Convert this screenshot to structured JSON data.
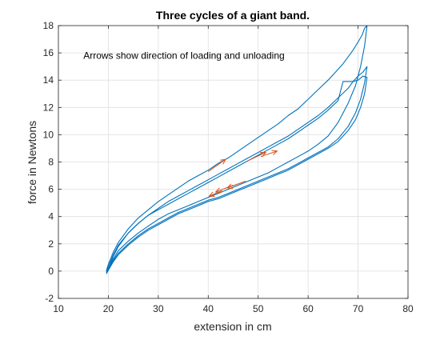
{
  "chart_data": {
    "type": "line",
    "title": "Three cycles of a giant band.",
    "xlabel": "extension in cm",
    "ylabel": "force in Newtons",
    "xlim": [
      10,
      80
    ],
    "ylim": [
      -2,
      18
    ],
    "xticks": [
      10,
      20,
      30,
      40,
      50,
      60,
      70,
      80
    ],
    "yticks": [
      -2,
      0,
      2,
      4,
      6,
      8,
      10,
      12,
      14,
      16,
      18
    ],
    "grid": true,
    "annotation": {
      "text": "Arrows show direction of loading and unloading",
      "x": 15,
      "y": 15.8
    },
    "line_color": "#0072BD",
    "arrow_color": "#D95319",
    "series": [
      {
        "x": [
          19.6,
          20.0,
          21,
          22,
          24,
          26,
          28,
          30,
          32,
          34,
          36,
          38,
          40,
          42,
          44,
          46,
          48,
          50,
          52,
          54,
          56,
          58,
          60,
          62,
          64,
          66,
          67,
          68,
          69,
          70,
          70.8,
          71.3,
          71.8,
          71.3,
          70.5,
          69.5,
          68,
          66,
          64,
          62,
          60,
          58,
          56,
          54,
          52,
          50,
          48,
          46,
          44,
          42,
          40,
          38,
          36,
          34,
          32,
          30,
          28,
          26,
          24,
          22,
          21,
          20.2,
          19.7
        ],
        "y": [
          0.0,
          0.5,
          1.4,
          2.1,
          3.1,
          3.9,
          4.5,
          5.1,
          5.6,
          6.1,
          6.6,
          7.0,
          7.4,
          7.9,
          8.3,
          8.8,
          9.3,
          9.8,
          10.3,
          10.8,
          11.4,
          11.9,
          12.6,
          13.3,
          14.0,
          14.8,
          15.2,
          15.7,
          16.2,
          16.8,
          17.3,
          17.8,
          18.0,
          16.5,
          15.0,
          13.6,
          12.3,
          10.9,
          9.9,
          9.3,
          8.8,
          8.4,
          8.0,
          7.6,
          7.2,
          6.9,
          6.6,
          6.3,
          6.0,
          5.7,
          5.4,
          5.1,
          4.8,
          4.5,
          4.2,
          3.8,
          3.3,
          2.8,
          2.2,
          1.5,
          0.9,
          0.3,
          -0.1
        ]
      },
      {
        "x": [
          19.7,
          20.2,
          21,
          22,
          24,
          26,
          28,
          30,
          32,
          34,
          36,
          38,
          40,
          42,
          44,
          46,
          48,
          50,
          52,
          54,
          56,
          58,
          60,
          62,
          64,
          66,
          68,
          69,
          70,
          71,
          71.8,
          71.3,
          70.5,
          69.5,
          68,
          66,
          64,
          62,
          60,
          58,
          56,
          54,
          52,
          50,
          48,
          46,
          44,
          42,
          40,
          38,
          36,
          34,
          32,
          30,
          28,
          26,
          24,
          22,
          21,
          20.2,
          19.6
        ],
        "y": [
          -0.1,
          0.3,
          1.1,
          1.8,
          2.8,
          3.5,
          4.1,
          4.6,
          5.1,
          5.5,
          5.9,
          6.3,
          6.7,
          7.1,
          7.5,
          7.9,
          8.3,
          8.7,
          9.1,
          9.5,
          9.9,
          10.4,
          10.9,
          11.4,
          12.0,
          12.7,
          13.4,
          13.9,
          14.3,
          14.6,
          15.0,
          13.8,
          12.6,
          11.6,
          10.6,
          9.7,
          9.1,
          8.7,
          8.3,
          7.9,
          7.5,
          7.2,
          6.9,
          6.6,
          6.3,
          6.0,
          5.7,
          5.4,
          5.2,
          4.9,
          4.6,
          4.3,
          3.9,
          3.5,
          3.1,
          2.6,
          2.0,
          1.3,
          0.8,
          0.2,
          -0.1
        ]
      },
      {
        "x": [
          19.6,
          20.2,
          21,
          22,
          24,
          26,
          28,
          30,
          32,
          34,
          36,
          38,
          40,
          42,
          44,
          46,
          48,
          50,
          52,
          54,
          56,
          58,
          60,
          62,
          64,
          66,
          67,
          68,
          69,
          70,
          71,
          71.8,
          71.3,
          70.5,
          69.5,
          68,
          66,
          64,
          62,
          60,
          58,
          56,
          54,
          52,
          50,
          48,
          46,
          44,
          42,
          40,
          38,
          36,
          34,
          32,
          30,
          28,
          26,
          24,
          22,
          21,
          20.2,
          19.6
        ],
        "y": [
          -0.1,
          0.5,
          1.2,
          1.9,
          2.8,
          3.5,
          4.1,
          4.5,
          4.9,
          5.3,
          5.7,
          6.1,
          6.5,
          6.9,
          7.3,
          7.7,
          8.1,
          8.5,
          8.9,
          9.3,
          9.7,
          10.2,
          10.7,
          11.2,
          11.8,
          12.5,
          13.9,
          13.9,
          13.9,
          14.0,
          14.3,
          14.2,
          13.0,
          12.0,
          11.1,
          10.3,
          9.5,
          9.0,
          8.6,
          8.2,
          7.8,
          7.4,
          7.1,
          6.8,
          6.5,
          6.2,
          5.9,
          5.6,
          5.3,
          5.1,
          4.8,
          4.5,
          4.2,
          3.8,
          3.4,
          3.0,
          2.5,
          1.9,
          1.2,
          0.7,
          0.2,
          -0.2
        ]
      }
    ],
    "arrows": [
      {
        "x1": 40.0,
        "y1": 7.3,
        "x2": 43.5,
        "y2": 8.2
      },
      {
        "x1": 48.0,
        "y1": 8.1,
        "x2": 51.5,
        "y2": 8.7
      },
      {
        "x1": 50.5,
        "y1": 8.4,
        "x2": 53.8,
        "y2": 8.8
      },
      {
        "x1": 45.0,
        "y1": 6.3,
        "x2": 41.5,
        "y2": 5.8
      },
      {
        "x1": 42.8,
        "y1": 5.9,
        "x2": 40.2,
        "y2": 5.5
      },
      {
        "x1": 47.5,
        "y1": 6.6,
        "x2": 43.8,
        "y2": 6.1
      }
    ]
  }
}
